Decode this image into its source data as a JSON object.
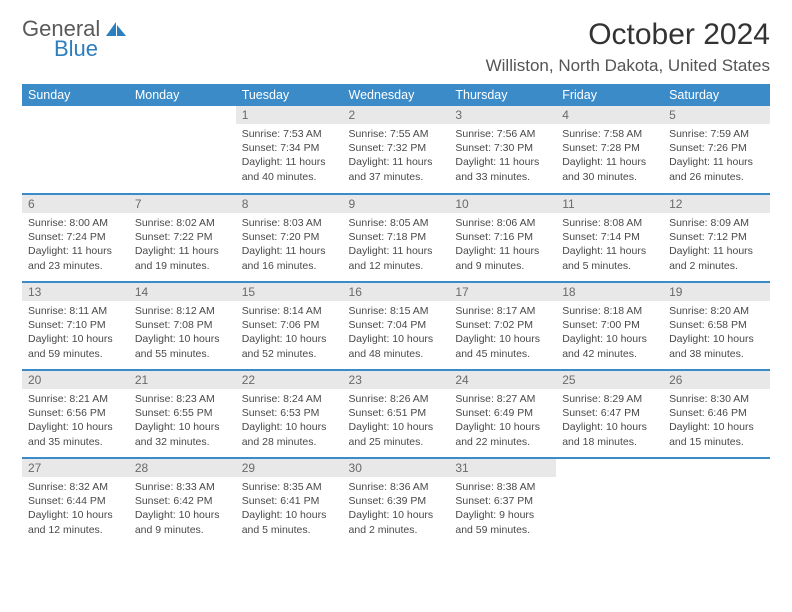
{
  "logo": {
    "general": "General",
    "blue": "Blue"
  },
  "title": "October 2024",
  "location": "Williston, North Dakota, United States",
  "colors": {
    "header_bg": "#3b8bc9",
    "header_fg": "#ffffff",
    "daynum_bg": "#e8e8e8",
    "daynum_fg": "#6a6a6a",
    "border": "#3b8bc9",
    "text": "#494949",
    "logo_blue": "#2b7fbf"
  },
  "day_headers": [
    "Sunday",
    "Monday",
    "Tuesday",
    "Wednesday",
    "Thursday",
    "Friday",
    "Saturday"
  ],
  "weeks": [
    [
      null,
      null,
      {
        "n": "1",
        "sunrise": "Sunrise: 7:53 AM",
        "sunset": "Sunset: 7:34 PM",
        "daylight": "Daylight: 11 hours and 40 minutes."
      },
      {
        "n": "2",
        "sunrise": "Sunrise: 7:55 AM",
        "sunset": "Sunset: 7:32 PM",
        "daylight": "Daylight: 11 hours and 37 minutes."
      },
      {
        "n": "3",
        "sunrise": "Sunrise: 7:56 AM",
        "sunset": "Sunset: 7:30 PM",
        "daylight": "Daylight: 11 hours and 33 minutes."
      },
      {
        "n": "4",
        "sunrise": "Sunrise: 7:58 AM",
        "sunset": "Sunset: 7:28 PM",
        "daylight": "Daylight: 11 hours and 30 minutes."
      },
      {
        "n": "5",
        "sunrise": "Sunrise: 7:59 AM",
        "sunset": "Sunset: 7:26 PM",
        "daylight": "Daylight: 11 hours and 26 minutes."
      }
    ],
    [
      {
        "n": "6",
        "sunrise": "Sunrise: 8:00 AM",
        "sunset": "Sunset: 7:24 PM",
        "daylight": "Daylight: 11 hours and 23 minutes."
      },
      {
        "n": "7",
        "sunrise": "Sunrise: 8:02 AM",
        "sunset": "Sunset: 7:22 PM",
        "daylight": "Daylight: 11 hours and 19 minutes."
      },
      {
        "n": "8",
        "sunrise": "Sunrise: 8:03 AM",
        "sunset": "Sunset: 7:20 PM",
        "daylight": "Daylight: 11 hours and 16 minutes."
      },
      {
        "n": "9",
        "sunrise": "Sunrise: 8:05 AM",
        "sunset": "Sunset: 7:18 PM",
        "daylight": "Daylight: 11 hours and 12 minutes."
      },
      {
        "n": "10",
        "sunrise": "Sunrise: 8:06 AM",
        "sunset": "Sunset: 7:16 PM",
        "daylight": "Daylight: 11 hours and 9 minutes."
      },
      {
        "n": "11",
        "sunrise": "Sunrise: 8:08 AM",
        "sunset": "Sunset: 7:14 PM",
        "daylight": "Daylight: 11 hours and 5 minutes."
      },
      {
        "n": "12",
        "sunrise": "Sunrise: 8:09 AM",
        "sunset": "Sunset: 7:12 PM",
        "daylight": "Daylight: 11 hours and 2 minutes."
      }
    ],
    [
      {
        "n": "13",
        "sunrise": "Sunrise: 8:11 AM",
        "sunset": "Sunset: 7:10 PM",
        "daylight": "Daylight: 10 hours and 59 minutes."
      },
      {
        "n": "14",
        "sunrise": "Sunrise: 8:12 AM",
        "sunset": "Sunset: 7:08 PM",
        "daylight": "Daylight: 10 hours and 55 minutes."
      },
      {
        "n": "15",
        "sunrise": "Sunrise: 8:14 AM",
        "sunset": "Sunset: 7:06 PM",
        "daylight": "Daylight: 10 hours and 52 minutes."
      },
      {
        "n": "16",
        "sunrise": "Sunrise: 8:15 AM",
        "sunset": "Sunset: 7:04 PM",
        "daylight": "Daylight: 10 hours and 48 minutes."
      },
      {
        "n": "17",
        "sunrise": "Sunrise: 8:17 AM",
        "sunset": "Sunset: 7:02 PM",
        "daylight": "Daylight: 10 hours and 45 minutes."
      },
      {
        "n": "18",
        "sunrise": "Sunrise: 8:18 AM",
        "sunset": "Sunset: 7:00 PM",
        "daylight": "Daylight: 10 hours and 42 minutes."
      },
      {
        "n": "19",
        "sunrise": "Sunrise: 8:20 AM",
        "sunset": "Sunset: 6:58 PM",
        "daylight": "Daylight: 10 hours and 38 minutes."
      }
    ],
    [
      {
        "n": "20",
        "sunrise": "Sunrise: 8:21 AM",
        "sunset": "Sunset: 6:56 PM",
        "daylight": "Daylight: 10 hours and 35 minutes."
      },
      {
        "n": "21",
        "sunrise": "Sunrise: 8:23 AM",
        "sunset": "Sunset: 6:55 PM",
        "daylight": "Daylight: 10 hours and 32 minutes."
      },
      {
        "n": "22",
        "sunrise": "Sunrise: 8:24 AM",
        "sunset": "Sunset: 6:53 PM",
        "daylight": "Daylight: 10 hours and 28 minutes."
      },
      {
        "n": "23",
        "sunrise": "Sunrise: 8:26 AM",
        "sunset": "Sunset: 6:51 PM",
        "daylight": "Daylight: 10 hours and 25 minutes."
      },
      {
        "n": "24",
        "sunrise": "Sunrise: 8:27 AM",
        "sunset": "Sunset: 6:49 PM",
        "daylight": "Daylight: 10 hours and 22 minutes."
      },
      {
        "n": "25",
        "sunrise": "Sunrise: 8:29 AM",
        "sunset": "Sunset: 6:47 PM",
        "daylight": "Daylight: 10 hours and 18 minutes."
      },
      {
        "n": "26",
        "sunrise": "Sunrise: 8:30 AM",
        "sunset": "Sunset: 6:46 PM",
        "daylight": "Daylight: 10 hours and 15 minutes."
      }
    ],
    [
      {
        "n": "27",
        "sunrise": "Sunrise: 8:32 AM",
        "sunset": "Sunset: 6:44 PM",
        "daylight": "Daylight: 10 hours and 12 minutes."
      },
      {
        "n": "28",
        "sunrise": "Sunrise: 8:33 AM",
        "sunset": "Sunset: 6:42 PM",
        "daylight": "Daylight: 10 hours and 9 minutes."
      },
      {
        "n": "29",
        "sunrise": "Sunrise: 8:35 AM",
        "sunset": "Sunset: 6:41 PM",
        "daylight": "Daylight: 10 hours and 5 minutes."
      },
      {
        "n": "30",
        "sunrise": "Sunrise: 8:36 AM",
        "sunset": "Sunset: 6:39 PM",
        "daylight": "Daylight: 10 hours and 2 minutes."
      },
      {
        "n": "31",
        "sunrise": "Sunrise: 8:38 AM",
        "sunset": "Sunset: 6:37 PM",
        "daylight": "Daylight: 9 hours and 59 minutes."
      },
      null,
      null
    ]
  ]
}
